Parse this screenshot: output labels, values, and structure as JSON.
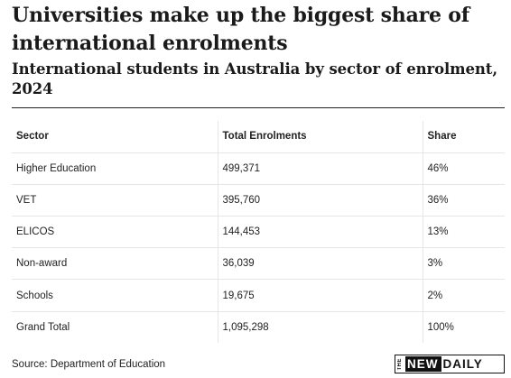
{
  "header": {
    "title": "Universities make up the biggest share of international enrolments",
    "subtitle": "International students in Australia by sector of enrolment, 2024"
  },
  "footer": {
    "source": "Source: Department of Education",
    "logo": {
      "the": "THE",
      "new": "NEW",
      "daily": "DAILY"
    }
  },
  "chart_data": {
    "type": "table",
    "title": "Universities make up the biggest share of international enrolments",
    "subtitle": "International students in Australia by sector of enrolment, 2024",
    "columns": [
      "Sector",
      "Total Enrolments",
      "Share"
    ],
    "rows": [
      [
        "Higher Education",
        "499,371",
        "46%"
      ],
      [
        "VET",
        "395,760",
        "36%"
      ],
      [
        "ELICOS",
        "144,453",
        "13%"
      ],
      [
        "Non-award",
        "36,039",
        "3%"
      ],
      [
        "Schools",
        "19,675",
        "2%"
      ],
      [
        "Grand Total",
        "1,095,298",
        "100%"
      ]
    ]
  }
}
